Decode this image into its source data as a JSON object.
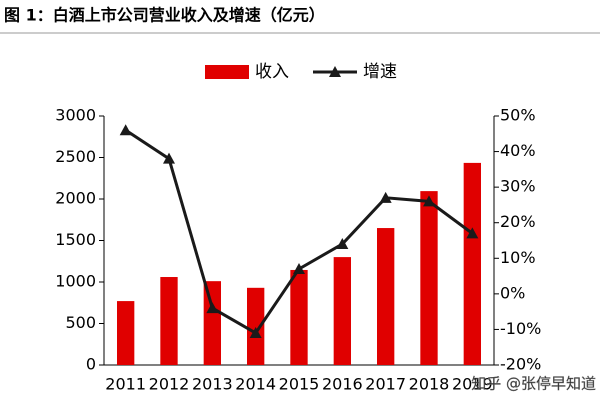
{
  "chart_data": {
    "type": "bar-line",
    "title": "图 1：白酒上市公司营业收入及增速（亿元）",
    "categories": [
      "2011",
      "2012",
      "2013",
      "2014",
      "2015",
      "2016",
      "2017",
      "2018",
      "2019"
    ],
    "series": [
      {
        "name": "收入",
        "type": "bar",
        "color": "#e00000",
        "values": [
          770,
          1060,
          1010,
          930,
          1145,
          1300,
          1650,
          2095,
          2435
        ]
      },
      {
        "name": "增速",
        "type": "line",
        "axis": "y2",
        "color": "#1a1a1a",
        "values": [
          46,
          38,
          -4,
          -11,
          7,
          14,
          27,
          26,
          17
        ]
      }
    ],
    "ylim": [
      0,
      3000
    ],
    "yticks": [
      0,
      500,
      1000,
      1500,
      2000,
      2500,
      3000
    ],
    "y2lim": [
      -20,
      50
    ],
    "y2ticks": [
      {
        "value": -20,
        "label": "-20%"
      },
      {
        "value": -10,
        "label": "-10%"
      },
      {
        "value": 0,
        "label": "0%"
      },
      {
        "value": 10,
        "label": "10%"
      },
      {
        "value": 20,
        "label": "20%"
      },
      {
        "value": 30,
        "label": "30%"
      },
      {
        "value": 40,
        "label": "40%"
      },
      {
        "value": 50,
        "label": "50%"
      }
    ],
    "legend": "top",
    "watermark": "知乎 @张停早知道"
  }
}
